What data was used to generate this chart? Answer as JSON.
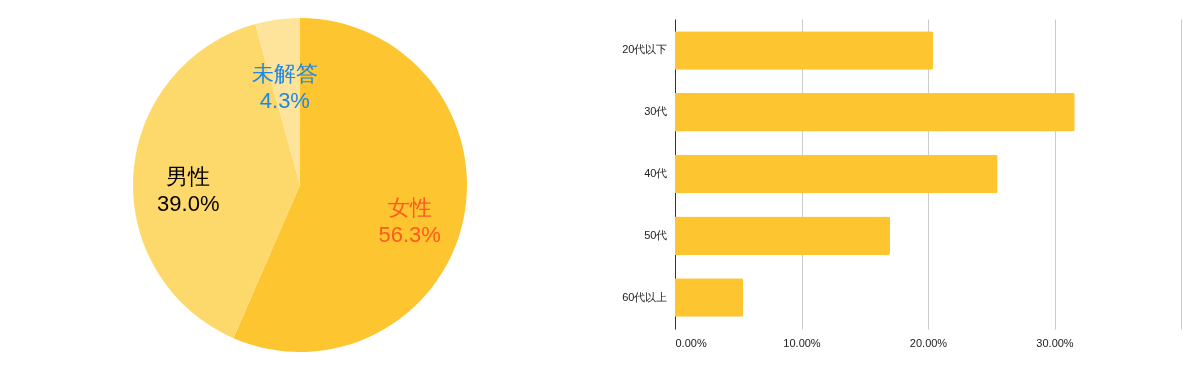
{
  "chart_data": [
    {
      "type": "pie",
      "categories": [
        "女性",
        "男性",
        "未解答"
      ],
      "values": [
        56.3,
        39.0,
        4.3
      ],
      "colors": [
        "#fdc52f",
        "#fdd86b",
        "#fee49b"
      ],
      "value_labels": [
        "56.3%",
        "39.0%",
        "4.3%"
      ]
    },
    {
      "type": "bar",
      "orientation": "horizontal",
      "categories": [
        "20代以下",
        "30代",
        "40代",
        "50代",
        "60代以上"
      ],
      "values": [
        20.4,
        31.6,
        25.5,
        17.0,
        5.4
      ],
      "color": "#fdc52f",
      "xlim": [
        0,
        40
      ],
      "xticks": [
        {
          "value": 0,
          "label": "0.00%"
        },
        {
          "value": 10,
          "label": "10.00%"
        },
        {
          "value": 20,
          "label": "20.00%"
        },
        {
          "value": 30,
          "label": "30.00%"
        },
        {
          "value": 40,
          "label": null
        }
      ],
      "grid": "x"
    }
  ]
}
